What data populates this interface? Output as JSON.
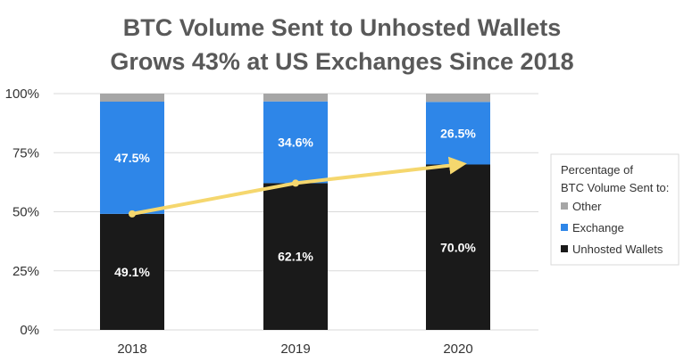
{
  "chart_data": {
    "type": "bar",
    "stacked": true,
    "title_lines": [
      "BTC Volume Sent to Unhosted Wallets",
      "Grows 43% at US Exchanges Since 2018"
    ],
    "categories": [
      "2018",
      "2019",
      "2020"
    ],
    "series": [
      {
        "name": "Unhosted Wallets",
        "color": "#1a1a1a",
        "values": [
          49.1,
          62.1,
          70.0
        ],
        "labels": [
          "49.1%",
          "62.1%",
          "70.0%"
        ]
      },
      {
        "name": "Exchange",
        "color": "#2e86e8",
        "values": [
          47.5,
          34.6,
          26.5
        ],
        "labels": [
          "47.5%",
          "34.6%",
          "26.5%"
        ]
      },
      {
        "name": "Other",
        "color": "#a6a6a6",
        "values": [
          3.4,
          3.3,
          3.5
        ]
      }
    ],
    "trend_line": {
      "color": "#f5d76e",
      "values": [
        49.1,
        62.1,
        70.0
      ]
    },
    "ylim": [
      0,
      100
    ],
    "yticks": [
      "0%",
      "25%",
      "50%",
      "75%",
      "100%"
    ],
    "grid": true,
    "legend": {
      "title_lines": [
        "Percentage of",
        "BTC Volume Sent to:"
      ],
      "items": [
        "Other",
        "Exchange",
        "Unhosted Wallets"
      ],
      "placement": "right"
    }
  }
}
